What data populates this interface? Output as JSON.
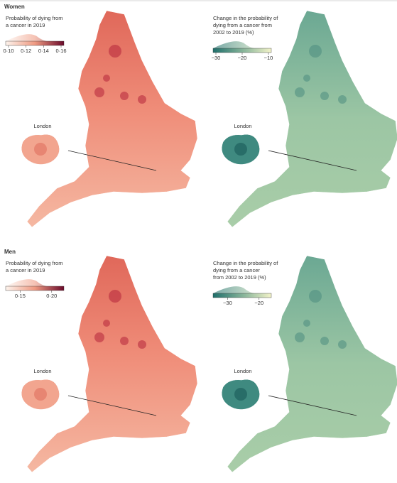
{
  "sections": [
    {
      "title": "Women",
      "maps": [
        {
          "legend_title": [
            "Probability of dying from",
            "a cancer in 2019"
          ],
          "ticks": [
            "0·10",
            "0·12",
            "0·14",
            "0·16"
          ],
          "inset_label": "London"
        },
        {
          "legend_title": [
            "Change in the probability of",
            "dying from a cancer from",
            "2002 to 2019 (%)"
          ],
          "ticks": [
            "−30",
            "−20",
            "−10"
          ],
          "inset_label": "London"
        }
      ]
    },
    {
      "title": "Men",
      "maps": [
        {
          "legend_title": [
            "Probability of dying from",
            "a cancer in 2019"
          ],
          "ticks": [
            "0·15",
            "0·20"
          ],
          "inset_label": "London"
        },
        {
          "legend_title": [
            "Change in the probability of",
            "dying from a cancer",
            "from 2002 to 2019 (%)"
          ],
          "ticks": [
            "−30",
            "−20"
          ],
          "inset_label": "London"
        }
      ]
    }
  ]
}
